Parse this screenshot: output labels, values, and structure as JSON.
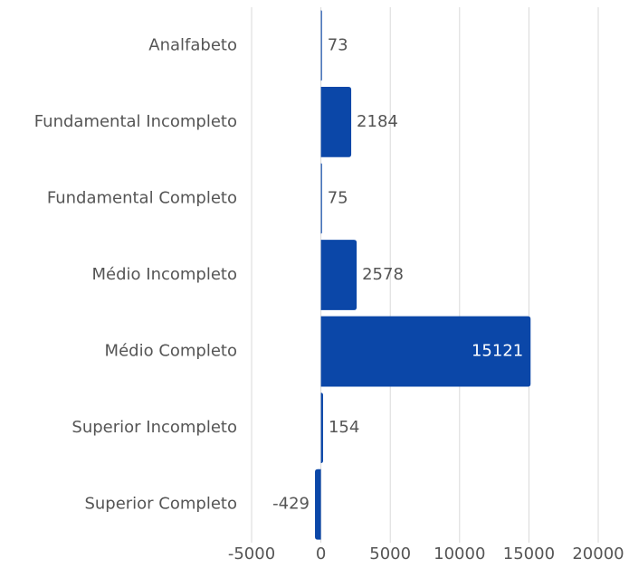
{
  "chart_data": {
    "type": "barh",
    "categories": [
      "Analfabeto",
      "Fundamental Incompleto",
      "Fundamental Completo",
      "Médio Incompleto",
      "Médio Completo",
      "Superior Incompleto",
      "Superior Completo"
    ],
    "values": [
      73,
      2184,
      75,
      2578,
      15121,
      154,
      -429
    ],
    "color": "#0b47a8",
    "xlim": [
      -5000,
      20000
    ],
    "xticks": [
      -5000,
      0,
      5000,
      10000,
      15000,
      20000
    ],
    "grid": true
  }
}
